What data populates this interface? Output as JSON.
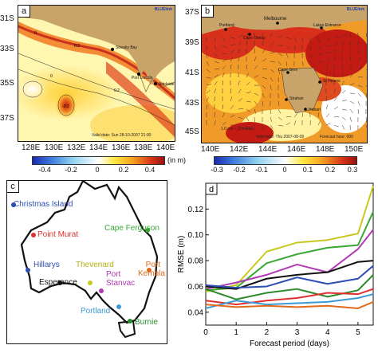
{
  "panel_a": {
    "letter": "a",
    "brand": "BLUElink",
    "lat_labels": [
      "31S",
      "33S",
      "35S",
      "37S"
    ],
    "lon_labels": [
      "128E",
      "130E",
      "132E",
      "134E",
      "136E",
      "138E",
      "140E"
    ],
    "valid_text": "Valid date: Sun 28-10-2007 21:00",
    "places": [
      "Streaky Bay",
      "Port Lincoln",
      "Adelaide"
    ],
    "contour_labels": [
      "0",
      "0.2",
      "0",
      "-0.2",
      "0.2"
    ],
    "colorbar": {
      "ticks": [
        "-0.4",
        "-0.2",
        "0",
        "0.2",
        "0.4"
      ],
      "unit": "(in m)"
    }
  },
  "panel_b": {
    "letter": "b",
    "brand": "BLUElink",
    "lat_labels": [
      "37S",
      "39S",
      "41S",
      "43S",
      "45S"
    ],
    "lon_labels": [
      "140E",
      "142E",
      "144E",
      "146E",
      "148E",
      "150E"
    ],
    "places": [
      "Melbourne",
      "Portland",
      "Cape Otway",
      "Lakes Entrance",
      "Cape Grim",
      "St Helens",
      "Strahan",
      "Hobart"
    ],
    "vector_scale": "1.0 ms⁻¹ (2 knots)",
    "valid_text": "Valid date: Thu 2007-08-09",
    "forecast_text": "Forecast hour: 000",
    "colorbar": {
      "ticks": [
        "-0.3",
        "-0.2",
        "-0.1",
        "0",
        "0.1",
        "0.2",
        "0.3"
      ]
    }
  },
  "panel_c": {
    "letter": "c",
    "stations": [
      {
        "name": "Christmas Island",
        "color": "#2d4fb5"
      },
      {
        "name": "Point Murat",
        "color": "#e03030"
      },
      {
        "name": "Cape Ferguson",
        "color": "#3aa835"
      },
      {
        "name": "Hillarys",
        "color": "#2d4fb5"
      },
      {
        "name": "Thevenard",
        "color": "#c8c81e"
      },
      {
        "name": "Port Kembla",
        "color": "#e06a1a"
      },
      {
        "name": "Port Stanvac",
        "color": "#b23ab2"
      },
      {
        "name": "Esperance",
        "color": "#111111"
      },
      {
        "name": "Portland",
        "color": "#3a9ad6"
      },
      {
        "name": "Burnie",
        "color": "#2a8a2a"
      }
    ]
  },
  "chart_data": {
    "type": "line",
    "panel_letter": "d",
    "xlabel": "Forecast period (days)",
    "ylabel": "RMSE (m)",
    "x": [
      0,
      1,
      2,
      3,
      4,
      5,
      5.5
    ],
    "x_ticks": [
      "0",
      "1",
      "2",
      "3",
      "4",
      "5"
    ],
    "y_ticks": [
      "0.04",
      "0.06",
      "0.08",
      "0.10",
      "0.12"
    ],
    "xlim": [
      0,
      5.5
    ],
    "ylim": [
      0.03,
      0.14
    ],
    "series": [
      {
        "color": "#c8c81e",
        "values": [
          0.056,
          0.061,
          0.087,
          0.094,
          0.096,
          0.101,
          0.138
        ]
      },
      {
        "color": "#3aa835",
        "values": [
          0.057,
          0.059,
          0.078,
          0.085,
          0.09,
          0.092,
          0.118
        ]
      },
      {
        "color": "#b23ab2",
        "values": [
          0.058,
          0.063,
          0.069,
          0.077,
          0.071,
          0.089,
          0.104
        ]
      },
      {
        "color": "#111111",
        "values": [
          0.06,
          0.058,
          0.066,
          0.069,
          0.071,
          0.079,
          0.08
        ]
      },
      {
        "color": "#2d4fb5",
        "values": [
          0.061,
          0.059,
          0.06,
          0.067,
          0.062,
          0.066,
          0.076
        ]
      },
      {
        "color": "#2a8a2a",
        "values": [
          0.058,
          0.05,
          0.055,
          0.058,
          0.052,
          0.057,
          0.069
        ]
      },
      {
        "color": "#e03030",
        "values": [
          0.049,
          0.046,
          0.049,
          0.051,
          0.055,
          0.054,
          0.058
        ]
      },
      {
        "color": "#3a9ad6",
        "values": [
          0.043,
          0.049,
          0.046,
          0.047,
          0.048,
          0.051,
          0.054
        ]
      },
      {
        "color": "#e06a1a",
        "values": [
          0.046,
          0.044,
          0.045,
          0.044,
          0.045,
          0.043,
          0.048
        ]
      }
    ]
  }
}
